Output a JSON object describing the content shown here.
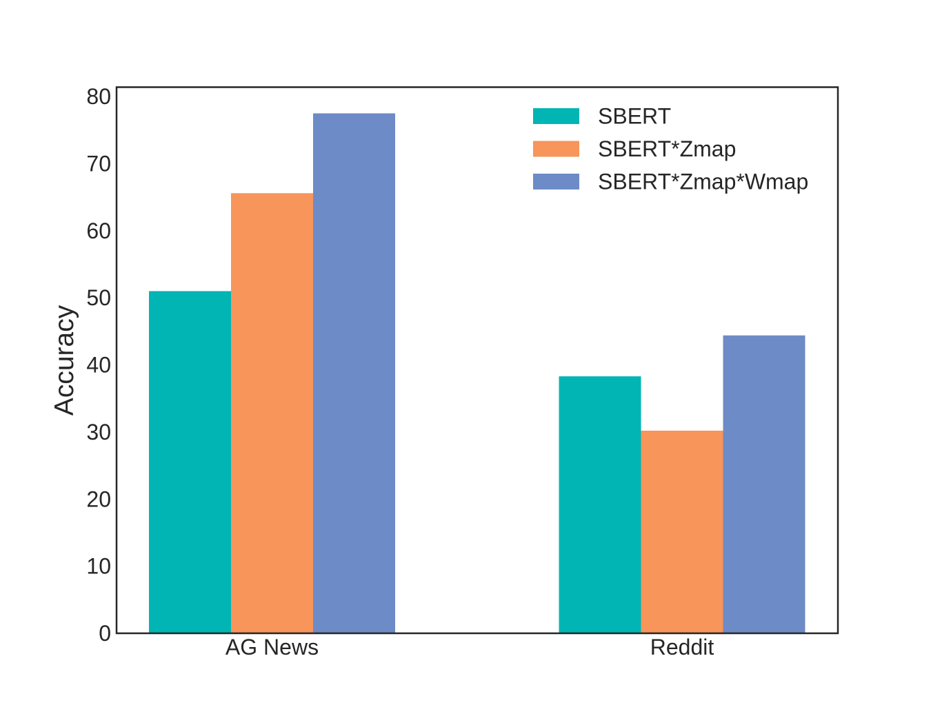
{
  "chart_data": {
    "type": "bar",
    "title": "",
    "xlabel": "",
    "ylabel": "Accuracy",
    "categories": [
      "AG News",
      "Reddit"
    ],
    "series": [
      {
        "name": "SBERT",
        "values": [
          51.0,
          38.3
        ],
        "color": "#00b5b3"
      },
      {
        "name": "SBERT*Zmap",
        "values": [
          65.6,
          30.2
        ],
        "color": "#f7955b"
      },
      {
        "name": "SBERT*Zmap*Wmap",
        "values": [
          77.5,
          44.4
        ],
        "color": "#6d8bc6"
      }
    ],
    "ylim": [
      0,
      81.4
    ],
    "yticks": [
      "0",
      "10",
      "20",
      "30",
      "40",
      "50",
      "60",
      "70",
      "80"
    ],
    "grid": false,
    "legend_position": "top-right"
  }
}
